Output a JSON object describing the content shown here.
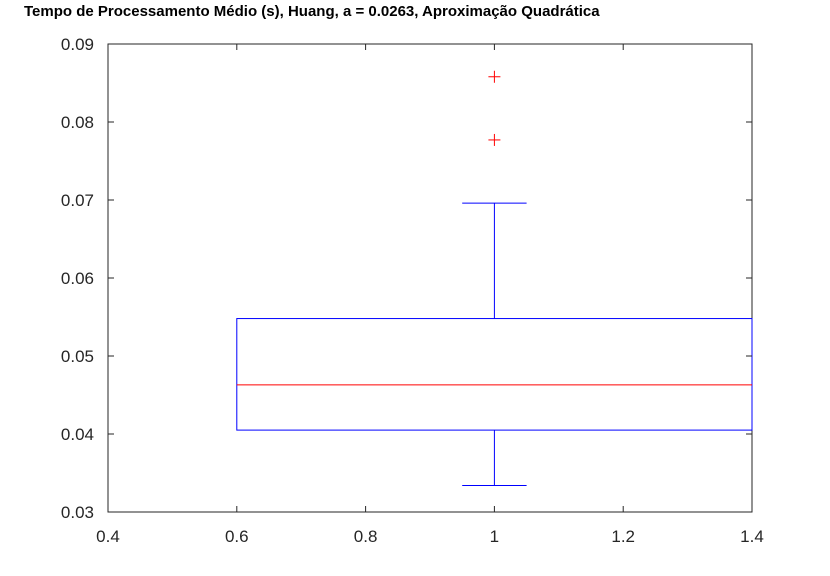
{
  "chart_data": {
    "type": "box",
    "title": "Tempo de Processamento Médio (s), Huang, a = 0.0263, Aproximação Quadrática",
    "xlabel": "",
    "ylabel": "",
    "xlim": [
      0.4,
      1.4
    ],
    "ylim": [
      0.03,
      0.09
    ],
    "x_ticks": [
      "0.4",
      "0.6",
      "0.8",
      "1",
      "1.2",
      "1.4"
    ],
    "y_ticks": [
      "0.03",
      "0.04",
      "0.05",
      "0.06",
      "0.07",
      "0.08",
      "0.09"
    ],
    "grid": false,
    "box": {
      "position": 1,
      "box_left": 0.6,
      "box_right": 1.4,
      "whisker_cap_halfwidth": 0.05,
      "q1": 0.0405,
      "median": 0.0463,
      "q3": 0.0548,
      "whisker_low": 0.0334,
      "whisker_high": 0.0696,
      "outliers": [
        0.0777,
        0.0858
      ]
    },
    "colors": {
      "box": "#0000ff",
      "median": "#ff0000",
      "outlier": "#ff0000",
      "axis": "#262626"
    }
  }
}
